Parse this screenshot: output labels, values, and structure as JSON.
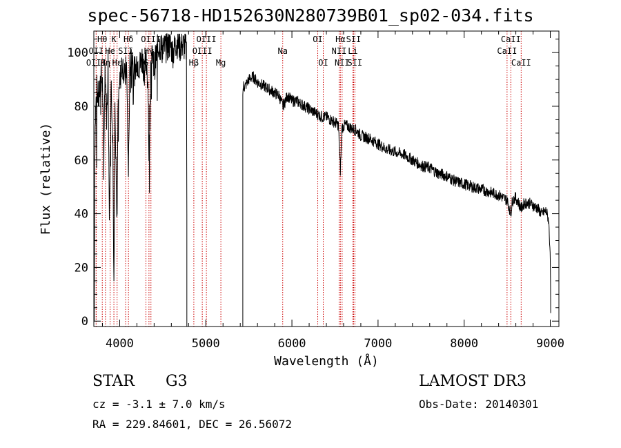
{
  "chart_data": {
    "type": "line",
    "title": "spec-56718-HD152630N280739B01_sp02-034.fits",
    "xlabel": "Wavelength (Å)",
    "ylabel": "Flux (relative)",
    "xlim": [
      3700,
      9100
    ],
    "ylim": [
      -2,
      108
    ],
    "xticks": [
      4000,
      5000,
      6000,
      7000,
      8000,
      9000
    ],
    "yticks": [
      0,
      20,
      40,
      60,
      80,
      100
    ],
    "gap": [
      4780,
      5430
    ],
    "series": [
      {
        "name": "flux",
        "x": [
          3705,
          3710,
          3720,
          3735,
          3760,
          3780,
          3800,
          3815,
          3830,
          3850,
          3865,
          3880,
          3900,
          3920,
          3933,
          3945,
          3968,
          3985,
          4000,
          4030,
          4060,
          4080,
          4101,
          4120,
          4150,
          4180,
          4200,
          4230,
          4260,
          4290,
          4310,
          4330,
          4340,
          4360,
          4383,
          4400,
          4430,
          4460,
          4500,
          4540,
          4580,
          4620,
          4660,
          4700,
          4730,
          4760,
          4775,
          4780,
          5430,
          5440,
          5450,
          5500,
          5550,
          5600,
          5650,
          5700,
          5750,
          5800,
          5850,
          5895,
          5950,
          6000,
          6050,
          6100,
          6150,
          6200,
          6250,
          6300,
          6350,
          6400,
          6450,
          6500,
          6540,
          6563,
          6580,
          6620,
          6680,
          6750,
          6800,
          6900,
          7000,
          7100,
          7200,
          7300,
          7400,
          7500,
          7600,
          7700,
          7800,
          7900,
          8000,
          8100,
          8200,
          8300,
          8400,
          8500,
          8542,
          8560,
          8600,
          8662,
          8700,
          8750,
          8800,
          8850,
          8900,
          8950,
          8980,
          9000,
          9005
        ],
        "y": [
          0,
          62,
          78,
          86,
          82,
          92,
          88,
          60,
          95,
          75,
          97,
          40,
          90,
          70,
          10,
          78,
          35,
          93,
          88,
          97,
          90,
          95,
          55,
          96,
          99,
          92,
          97,
          95,
          98,
          93,
          97,
          88,
          60,
          96,
          98,
          94,
          100,
          103,
          101,
          102,
          103,
          100,
          104,
          102,
          103,
          102,
          101,
          40,
          85,
          88,
          87,
          90,
          91,
          89,
          88,
          87,
          86,
          85,
          84,
          80,
          84,
          82,
          82,
          81,
          80,
          79,
          78,
          77,
          76,
          76,
          75,
          74,
          73,
          56,
          72,
          73,
          72,
          71,
          69,
          68,
          66,
          64,
          63,
          62,
          60,
          58,
          57,
          55,
          54,
          52,
          51,
          50,
          49,
          48,
          47,
          45,
          40,
          45,
          46,
          42,
          44,
          44,
          43,
          42,
          40,
          41,
          38,
          25,
          3
        ]
      }
    ],
    "line_markers": [
      {
        "label": "Hθ",
        "x": 3798,
        "row": 1
      },
      {
        "label": "OII",
        "x": 3727,
        "row": 2
      },
      {
        "label": "OIII",
        "x": 3727,
        "row": 3
      },
      {
        "label": "K",
        "x": 3933,
        "row": 1
      },
      {
        "label": "He",
        "x": 3889,
        "row": 2
      },
      {
        "label": "Hη",
        "x": 3835,
        "row": 3
      },
      {
        "label": "SII",
        "x": 4069,
        "row": 2
      },
      {
        "label": "Hε",
        "x": 3970,
        "row": 3
      },
      {
        "label": "Hδ",
        "x": 4102,
        "row": 1
      },
      {
        "label": "OIII",
        "x": 4363,
        "row": 1
      },
      {
        "label": "Hγ",
        "x": 4340,
        "row": 2
      },
      {
        "label": "G",
        "x": 4305,
        "row": 3
      },
      {
        "label": "Hβ",
        "x": 4861,
        "row": 3
      },
      {
        "label": "OIII",
        "x": 5007,
        "row": 1
      },
      {
        "label": "OIII",
        "x": 4959,
        "row": 2
      },
      {
        "label": "Mg",
        "x": 5175,
        "row": 3
      },
      {
        "label": "Na",
        "x": 5893,
        "row": 2
      },
      {
        "label": "OI",
        "x": 6300,
        "row": 1
      },
      {
        "label": "OI",
        "x": 6364,
        "row": 3
      },
      {
        "label": "Hα",
        "x": 6563,
        "row": 1
      },
      {
        "label": "SII",
        "x": 6716,
        "row": 1
      },
      {
        "label": "NII",
        "x": 6548,
        "row": 2
      },
      {
        "label": "Li",
        "x": 6708,
        "row": 2
      },
      {
        "label": "NII",
        "x": 6583,
        "row": 3
      },
      {
        "label": "SII",
        "x": 6731,
        "row": 3
      },
      {
        "label": "CaII",
        "x": 8542,
        "row": 1
      },
      {
        "label": "CaII",
        "x": 8498,
        "row": 2
      },
      {
        "label": "CaII",
        "x": 8662,
        "row": 3
      }
    ],
    "colors": {
      "spectrum": "#000000",
      "marker_line": "#cc0000",
      "axes": "#000000"
    }
  },
  "footer": {
    "object_type": "STAR",
    "subclass": "G3",
    "survey": "LAMOST DR3",
    "cz": "cz = -3.1 ± 7.0 km/s",
    "obs_date": "Obs-Date: 20140301",
    "coords": "RA = 229.84601, DEC =  26.56072"
  }
}
